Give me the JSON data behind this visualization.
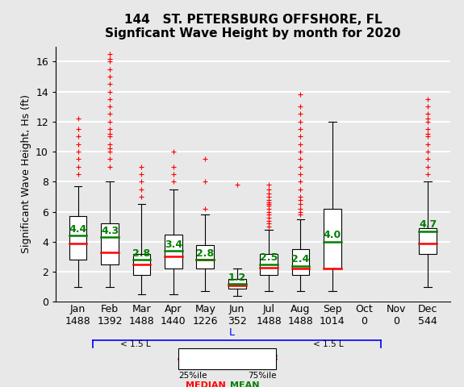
{
  "title_line1": "144   ST. PETERSBURG OFFSHORE, FL",
  "title_line2": "Signficant Wave Height by month for 2020",
  "ylabel": "Significant Wave Height, Hs (ft)",
  "months": [
    "Jan",
    "Feb",
    "Mar",
    "Apr",
    "May",
    "Jun",
    "Jul",
    "Aug",
    "Sep",
    "Oct",
    "Nov",
    "Dec"
  ],
  "counts": [
    1488,
    1392,
    1488,
    1440,
    1226,
    352,
    1488,
    1488,
    1014,
    0,
    0,
    544
  ],
  "box_stats": {
    "Jan": {
      "q1": 2.8,
      "median": 3.9,
      "q3": 5.7,
      "mean": 4.4,
      "whislo": 1.0,
      "whishi": 7.7,
      "fliers_high": [
        8.5,
        9.0,
        9.5,
        10.0,
        10.5,
        11.0,
        11.5,
        12.2
      ]
    },
    "Feb": {
      "q1": 2.5,
      "median": 3.3,
      "q3": 5.2,
      "mean": 4.3,
      "whislo": 1.0,
      "whishi": 8.0,
      "fliers_high": [
        9.0,
        9.5,
        10.0,
        10.2,
        10.5,
        11.0,
        11.2,
        11.5,
        12.0,
        12.5,
        13.0,
        13.5,
        14.0,
        14.5,
        15.0,
        15.5,
        16.0,
        16.2,
        16.5
      ]
    },
    "Mar": {
      "q1": 1.8,
      "median": 2.5,
      "q3": 3.2,
      "mean": 2.8,
      "whislo": 0.5,
      "whishi": 6.5,
      "fliers_high": [
        7.0,
        7.5,
        8.0,
        8.5,
        9.0
      ]
    },
    "Apr": {
      "q1": 2.2,
      "median": 3.0,
      "q3": 4.5,
      "mean": 3.4,
      "whislo": 0.5,
      "whishi": 7.5,
      "fliers_high": [
        8.0,
        8.5,
        9.0,
        10.0
      ]
    },
    "May": {
      "q1": 2.2,
      "median": 2.8,
      "q3": 3.8,
      "mean": 2.8,
      "whislo": 0.7,
      "whishi": 5.8,
      "fliers_high": [
        6.2,
        8.0,
        9.5
      ]
    },
    "Jun": {
      "q1": 0.9,
      "median": 1.1,
      "q3": 1.5,
      "mean": 1.2,
      "whislo": 0.4,
      "whishi": 2.2,
      "fliers_high": [
        7.8
      ]
    },
    "Jul": {
      "q1": 1.8,
      "median": 2.3,
      "q3": 3.2,
      "mean": 2.5,
      "whislo": 0.7,
      "whishi": 4.8,
      "fliers_high": [
        5.0,
        5.2,
        5.4,
        5.6,
        5.8,
        6.0,
        6.2,
        6.4,
        6.5,
        6.6,
        6.8,
        7.0,
        7.2,
        7.5,
        7.8
      ]
    },
    "Aug": {
      "q1": 1.8,
      "median": 2.2,
      "q3": 3.5,
      "mean": 2.4,
      "whislo": 0.7,
      "whishi": 5.5,
      "fliers_high": [
        5.8,
        6.0,
        6.2,
        6.5,
        6.8,
        7.0,
        7.5,
        8.0,
        8.5,
        9.0,
        9.5,
        10.0,
        10.5,
        11.0,
        11.5,
        12.0,
        12.5,
        13.0,
        13.8
      ]
    },
    "Sep": {
      "q1": 2.2,
      "median": 2.2,
      "q3": 6.2,
      "mean": 4.0,
      "whislo": 0.7,
      "whishi": 12.0,
      "fliers_high": []
    },
    "Oct": null,
    "Nov": null,
    "Dec": {
      "q1": 3.2,
      "median": 3.9,
      "q3": 4.9,
      "mean": 4.7,
      "whislo": 1.0,
      "whishi": 8.0,
      "fliers_high": [
        8.5,
        9.0,
        9.5,
        10.0,
        10.5,
        11.0,
        11.2,
        11.5,
        12.0,
        12.2,
        12.5,
        13.0,
        13.5
      ]
    }
  },
  "ylim": [
    0,
    17
  ],
  "yticks": [
    0,
    2,
    4,
    6,
    8,
    10,
    12,
    14,
    16
  ],
  "box_color": "white",
  "median_color": "red",
  "mean_color": "green",
  "flier_color": "red",
  "whisker_color": "black",
  "cap_color": "black",
  "box_edge_color": "black",
  "background_color": "#e8e8e8",
  "grid_color": "white",
  "title_fontsize": 11,
  "axis_label_fontsize": 9,
  "tick_fontsize": 9,
  "mean_label_fontsize": 9
}
